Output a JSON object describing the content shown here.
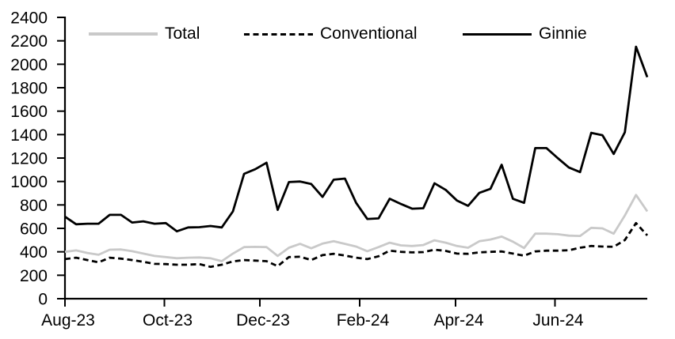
{
  "chart_data": {
    "type": "line",
    "title": "",
    "xlabel": "",
    "ylabel": "",
    "grid": false,
    "legend_position": "top",
    "x_axis": {
      "frequency": "weekly",
      "tick_labels": [
        "Aug-23",
        "Oct-23",
        "Dec-23",
        "Feb-24",
        "Apr-24",
        "Jun-24"
      ]
    },
    "y_axis": {
      "min": 0,
      "max": 2400,
      "step": 200,
      "tick_labels": [
        "0",
        "200",
        "400",
        "600",
        "800",
        "1000",
        "1200",
        "1400",
        "1600",
        "1800",
        "2000",
        "2200",
        "2400"
      ]
    },
    "series": [
      {
        "name": "Total",
        "color": "#c9c9c9",
        "line_style": "solid",
        "values": [
          400,
          412,
          390,
          375,
          418,
          420,
          405,
          385,
          365,
          355,
          345,
          350,
          352,
          345,
          320,
          385,
          440,
          442,
          440,
          365,
          435,
          468,
          430,
          470,
          490,
          468,
          445,
          405,
          440,
          478,
          455,
          450,
          458,
          498,
          478,
          450,
          435,
          490,
          505,
          530,
          487,
          432,
          555,
          555,
          550,
          538,
          535,
          605,
          600,
          555,
          710,
          885,
          745
        ]
      },
      {
        "name": "Conventional",
        "color": "#000000",
        "line_style": "dashed",
        "values": [
          338,
          350,
          330,
          310,
          350,
          342,
          330,
          315,
          297,
          295,
          290,
          290,
          295,
          272,
          290,
          318,
          330,
          325,
          320,
          278,
          355,
          358,
          330,
          372,
          383,
          368,
          350,
          338,
          362,
          410,
          400,
          395,
          398,
          418,
          408,
          385,
          383,
          395,
          400,
          403,
          385,
          367,
          403,
          410,
          410,
          413,
          435,
          450,
          445,
          443,
          500,
          645,
          540
        ]
      },
      {
        "name": "Ginnie",
        "color": "#000000",
        "line_style": "solid",
        "values": [
          700,
          635,
          640,
          640,
          715,
          715,
          650,
          660,
          640,
          645,
          575,
          608,
          610,
          620,
          608,
          745,
          1065,
          1105,
          1160,
          758,
          995,
          1000,
          978,
          868,
          1015,
          1025,
          818,
          680,
          685,
          853,
          808,
          768,
          772,
          985,
          928,
          838,
          792,
          903,
          938,
          1143,
          852,
          818,
          1285,
          1285,
          1200,
          1120,
          1080,
          1415,
          1395,
          1235,
          1420,
          2150,
          1890
        ]
      }
    ]
  }
}
